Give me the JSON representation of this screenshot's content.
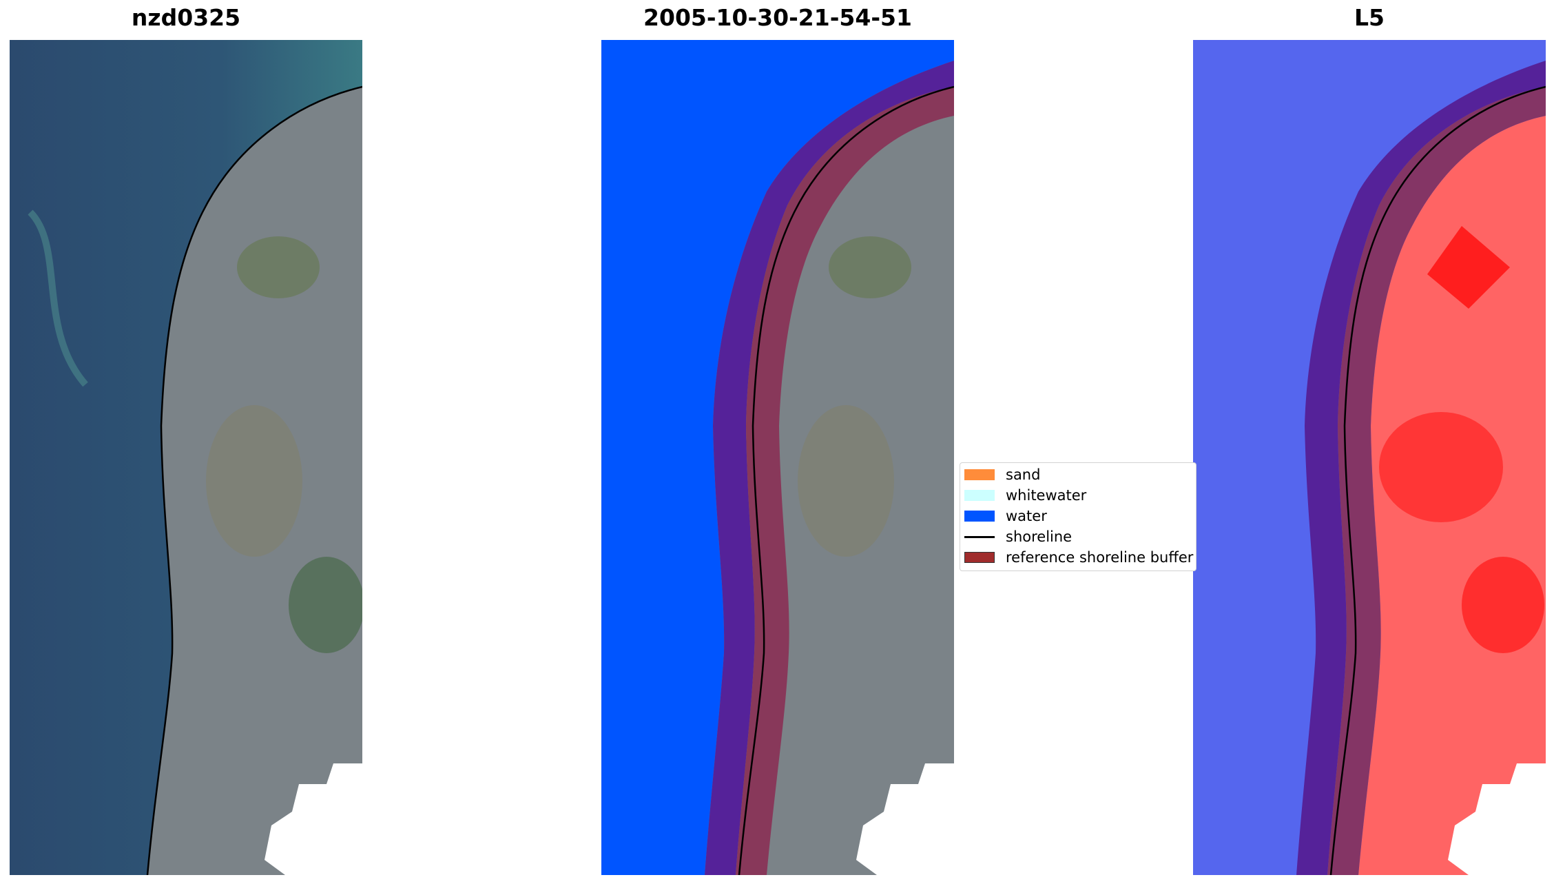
{
  "panels": [
    {
      "title": "nzd0325"
    },
    {
      "title": "2005-10-30-21-54-51"
    },
    {
      "title": "L5"
    }
  ],
  "legend": {
    "items": [
      {
        "label": "sand",
        "color": "#ff8c3a",
        "kind": "patch"
      },
      {
        "label": "whitewater",
        "color": "#ccffff",
        "kind": "patch"
      },
      {
        "label": "water",
        "color": "#0055ff",
        "kind": "patch"
      },
      {
        "label": "shoreline",
        "color": "#000000",
        "kind": "line"
      },
      {
        "label": "reference shoreline buffer",
        "color": "#a02c2c",
        "kind": "patch"
      }
    ]
  },
  "colors": {
    "sea": "#2c4e72",
    "land": "#7c8286",
    "water_class": "#0055ff",
    "buffer_dark": "#552299",
    "buffer_red": "#8a3055",
    "index_water": "#5566ee",
    "index_land": "#ff5a5a",
    "cloud_mask": "#ffffff"
  }
}
